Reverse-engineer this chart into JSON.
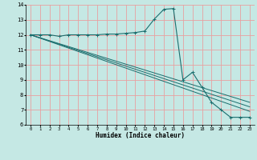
{
  "title": "",
  "xlabel": "Humidex (Indice chaleur)",
  "xlim": [
    -0.5,
    23.5
  ],
  "ylim": [
    6,
    14
  ],
  "yticks": [
    6,
    7,
    8,
    9,
    10,
    11,
    12,
    13,
    14
  ],
  "xticks": [
    0,
    1,
    2,
    3,
    4,
    5,
    6,
    7,
    8,
    9,
    10,
    11,
    12,
    13,
    14,
    15,
    16,
    17,
    18,
    19,
    20,
    21,
    22,
    23
  ],
  "bg_color": "#c5e8e4",
  "grid_color": "#e8a0a0",
  "line_color": "#1a6e6e",
  "curve_x": [
    0,
    1,
    2,
    3,
    4,
    5,
    6,
    7,
    8,
    9,
    10,
    11,
    12,
    13,
    14,
    15,
    16,
    17,
    18,
    19,
    20,
    21,
    22,
    23
  ],
  "curve_y": [
    12.0,
    12.0,
    12.0,
    11.9,
    12.0,
    12.0,
    12.0,
    12.0,
    12.05,
    12.05,
    12.1,
    12.15,
    12.25,
    13.05,
    13.7,
    13.75,
    9.0,
    9.5,
    8.5,
    7.5,
    7.0,
    6.5,
    6.5,
    6.5
  ],
  "diag_lines": [
    {
      "x": [
        0,
        23
      ],
      "y": [
        12.0,
        7.5
      ]
    },
    {
      "x": [
        0,
        23
      ],
      "y": [
        12.0,
        7.2
      ]
    },
    {
      "x": [
        0,
        23
      ],
      "y": [
        12.0,
        6.9
      ]
    }
  ]
}
